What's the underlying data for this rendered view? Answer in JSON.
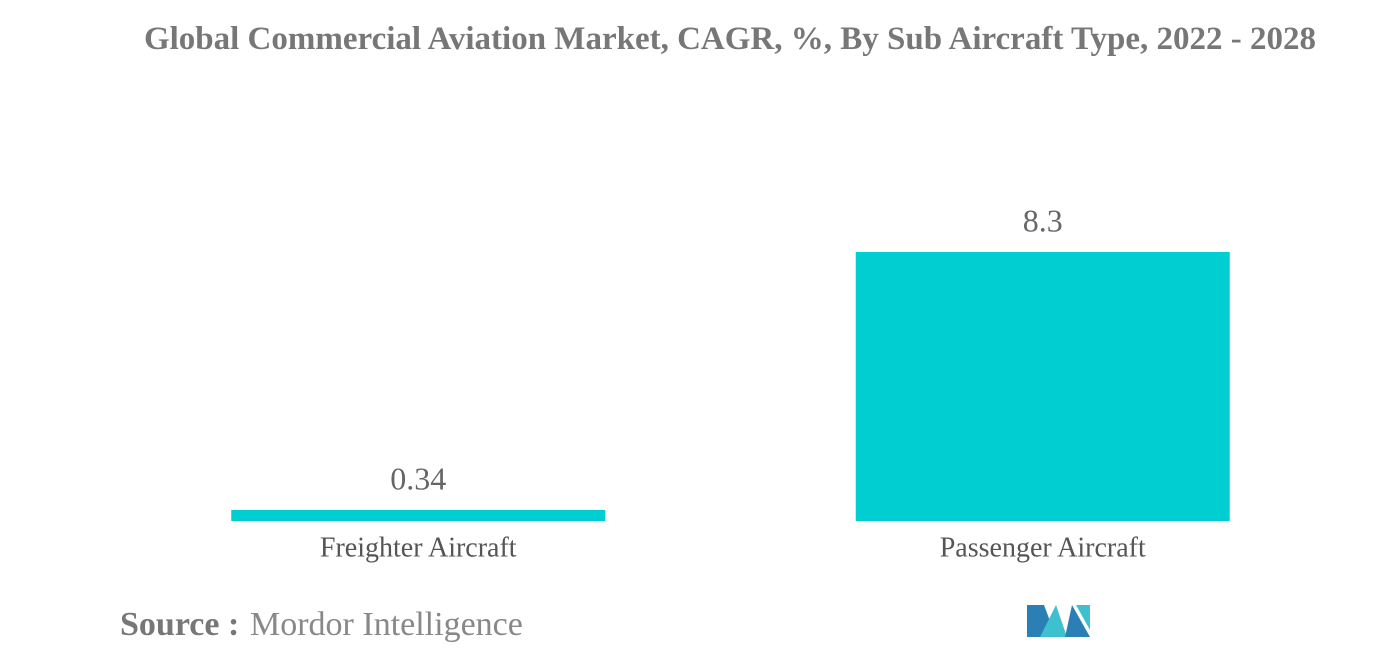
{
  "chart_data": {
    "type": "bar",
    "title": "Global Commercial Aviation Market, CAGR, %, By Sub Aircraft Type, 2022 - 2028",
    "categories": [
      "Freighter Aircraft",
      "Passenger Aircraft"
    ],
    "values": [
      0.34,
      8.3
    ],
    "color": "#00ced1",
    "source_label": "Source :",
    "source": "Mordor Intelligence"
  }
}
